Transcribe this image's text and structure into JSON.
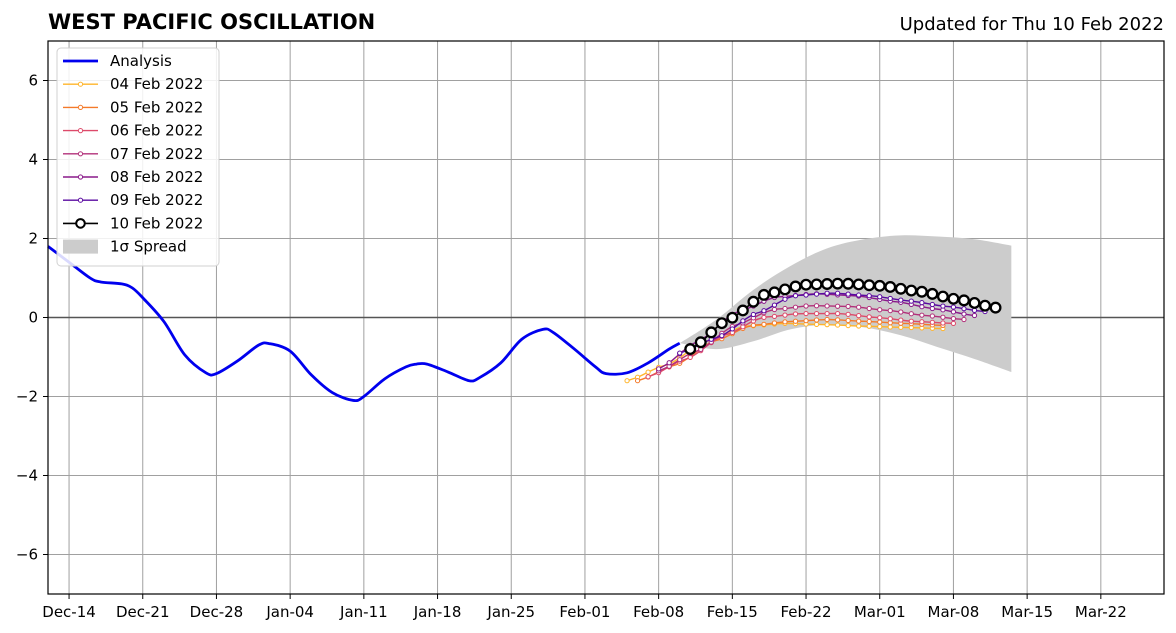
{
  "chart_data": {
    "type": "line",
    "title": "WEST PACIFIC OSCILLATION",
    "subtitle": "Updated for Thu 10 Feb 2022",
    "xlabel": "",
    "ylabel": "",
    "xlim": [
      "2021-12-12",
      "2022-03-28"
    ],
    "ylim": [
      -7,
      7
    ],
    "grid": true,
    "legend_position": "top-left",
    "x_ticks": [
      {
        "date": "2021-12-14",
        "label": "Dec-14"
      },
      {
        "date": "2021-12-21",
        "label": "Dec-21"
      },
      {
        "date": "2021-12-28",
        "label": "Dec-28"
      },
      {
        "date": "2022-01-04",
        "label": "Jan-04"
      },
      {
        "date": "2022-01-11",
        "label": "Jan-11"
      },
      {
        "date": "2022-01-18",
        "label": "Jan-18"
      },
      {
        "date": "2022-01-25",
        "label": "Jan-25"
      },
      {
        "date": "2022-02-01",
        "label": "Feb-01"
      },
      {
        "date": "2022-02-08",
        "label": "Feb-08"
      },
      {
        "date": "2022-02-15",
        "label": "Feb-15"
      },
      {
        "date": "2022-02-22",
        "label": "Feb-22"
      },
      {
        "date": "2022-03-01",
        "label": "Mar-01"
      },
      {
        "date": "2022-03-08",
        "label": "Mar-08"
      },
      {
        "date": "2022-03-15",
        "label": "Mar-15"
      },
      {
        "date": "2022-03-22",
        "label": "Mar-22"
      }
    ],
    "y_ticks": [
      {
        "value": 6,
        "label": "6"
      },
      {
        "value": 4,
        "label": "4"
      },
      {
        "value": 2,
        "label": "2"
      },
      {
        "value": 0,
        "label": "0"
      },
      {
        "value": -2,
        "label": "−2"
      },
      {
        "value": -4,
        "label": "−4"
      },
      {
        "value": -6,
        "label": "−6"
      }
    ],
    "analysis": {
      "name": "Analysis",
      "color": "#0000ee",
      "points": [
        [
          "2021-12-12",
          1.8
        ],
        [
          "2021-12-14",
          1.4
        ],
        [
          "2021-12-16",
          1.0
        ],
        [
          "2021-12-17",
          0.9
        ],
        [
          "2021-12-19",
          0.85
        ],
        [
          "2021-12-20",
          0.75
        ],
        [
          "2021-12-21",
          0.5
        ],
        [
          "2021-12-23",
          -0.1
        ],
        [
          "2021-12-25",
          -0.95
        ],
        [
          "2021-12-27",
          -1.4
        ],
        [
          "2021-12-28",
          -1.42
        ],
        [
          "2021-12-30",
          -1.1
        ],
        [
          "2022-01-01",
          -0.7
        ],
        [
          "2022-01-02",
          -0.66
        ],
        [
          "2022-01-04",
          -0.85
        ],
        [
          "2022-01-06",
          -1.45
        ],
        [
          "2022-01-08",
          -1.9
        ],
        [
          "2022-01-10",
          -2.1
        ],
        [
          "2022-01-11",
          -2.0
        ],
        [
          "2022-01-13",
          -1.55
        ],
        [
          "2022-01-15",
          -1.25
        ],
        [
          "2022-01-16",
          -1.18
        ],
        [
          "2022-01-17",
          -1.18
        ],
        [
          "2022-01-19",
          -1.38
        ],
        [
          "2022-01-21",
          -1.6
        ],
        [
          "2022-01-22",
          -1.52
        ],
        [
          "2022-01-24",
          -1.15
        ],
        [
          "2022-01-26",
          -0.55
        ],
        [
          "2022-01-28",
          -0.3
        ],
        [
          "2022-01-29",
          -0.38
        ],
        [
          "2022-01-31",
          -0.8
        ],
        [
          "2022-02-02",
          -1.25
        ],
        [
          "2022-02-03",
          -1.42
        ],
        [
          "2022-02-05",
          -1.4
        ],
        [
          "2022-02-07",
          -1.15
        ],
        [
          "2022-02-09",
          -0.8
        ],
        [
          "2022-02-10",
          -0.65
        ]
      ]
    },
    "spread": {
      "name": "1σ Spread",
      "color": "#cccccc",
      "start": "2022-02-10",
      "upper": [
        -0.65,
        -0.05,
        0.7,
        1.3,
        1.75,
        1.98,
        2.08,
        2.05,
        1.98,
        1.82
      ],
      "lower": [
        -0.65,
        -0.8,
        -0.6,
        -0.3,
        -0.18,
        -0.25,
        -0.45,
        -0.75,
        -1.05,
        -1.38
      ],
      "step_days": 3.5
    },
    "series": [
      {
        "name": "04 Feb 2022",
        "color": "#ffb42a",
        "start": "2022-02-05",
        "end": "2022-03-07",
        "anchors": [
          [
            0,
            -1.6
          ],
          [
            0.25,
            -1.2
          ],
          [
            0.5,
            -0.6
          ],
          [
            0.75,
            -0.22
          ],
          [
            1,
            -0.15
          ],
          [
            1.25,
            -0.18
          ],
          [
            1.5,
            -0.22
          ],
          [
            1.75,
            -0.25
          ],
          [
            2,
            -0.28
          ]
        ]
      },
      {
        "name": "05 Feb 2022",
        "color": "#f47a2a",
        "start": "2022-02-06",
        "end": "2022-03-07",
        "anchors": [
          [
            0,
            -1.6
          ],
          [
            0.25,
            -1.2
          ],
          [
            0.5,
            -0.6
          ],
          [
            0.75,
            -0.2
          ],
          [
            1,
            -0.1
          ],
          [
            1.25,
            -0.05
          ],
          [
            1.5,
            -0.1
          ],
          [
            1.75,
            -0.15
          ],
          [
            2,
            -0.2
          ]
        ]
      },
      {
        "name": "06 Feb 2022",
        "color": "#dd4a6a",
        "start": "2022-02-07",
        "end": "2022-03-08",
        "anchors": [
          [
            0,
            -1.5
          ],
          [
            0.25,
            -1.05
          ],
          [
            0.5,
            -0.45
          ],
          [
            0.75,
            0
          ],
          [
            1,
            0.1
          ],
          [
            1.25,
            0.1
          ],
          [
            1.5,
            0
          ],
          [
            1.75,
            -0.1
          ],
          [
            2,
            -0.15
          ]
        ]
      },
      {
        "name": "07 Feb 2022",
        "color": "#b2307a",
        "start": "2022-02-08",
        "end": "2022-03-09",
        "anchors": [
          [
            0,
            -1.35
          ],
          [
            0.25,
            -0.85
          ],
          [
            0.5,
            -0.2
          ],
          [
            0.75,
            0.2
          ],
          [
            1,
            0.3
          ],
          [
            1.25,
            0.28
          ],
          [
            1.5,
            0.18
          ],
          [
            1.75,
            0.05
          ],
          [
            2,
            -0.05
          ]
        ]
      },
      {
        "name": "08 Feb 2022",
        "color": "#8a1a8a",
        "start": "2022-02-08",
        "end": "2022-03-10",
        "anchors": [
          [
            0,
            -1.3
          ],
          [
            0.25,
            -0.6
          ],
          [
            0.5,
            0.15
          ],
          [
            0.75,
            0.52
          ],
          [
            1,
            0.6
          ],
          [
            1.25,
            0.55
          ],
          [
            1.5,
            0.4
          ],
          [
            1.75,
            0.22
          ],
          [
            2,
            0.05
          ]
        ]
      },
      {
        "name": "09 Feb 2022",
        "color": "#5a0aa0",
        "start": "2022-02-10",
        "end": "2022-03-11",
        "anchors": [
          [
            0,
            -0.9
          ],
          [
            0.25,
            -0.5
          ],
          [
            0.5,
            0.1
          ],
          [
            0.75,
            0.55
          ],
          [
            1,
            0.62
          ],
          [
            1.25,
            0.55
          ],
          [
            1.5,
            0.42
          ],
          [
            1.75,
            0.28
          ],
          [
            2,
            0.15
          ]
        ]
      },
      {
        "name": "10 Feb 2022",
        "color": "#000000",
        "start": "2022-02-11",
        "end": "2022-03-12",
        "big_markers": true,
        "anchors": [
          [
            0,
            -0.8
          ],
          [
            0.25,
            -0.05
          ],
          [
            0.5,
            0.6
          ],
          [
            0.75,
            0.83
          ],
          [
            1,
            0.86
          ],
          [
            1.25,
            0.8
          ],
          [
            1.5,
            0.66
          ],
          [
            1.75,
            0.46
          ],
          [
            2,
            0.25
          ]
        ]
      }
    ],
    "legend": [
      {
        "label": "Analysis",
        "kind": "thick-line",
        "color": "#0000ee"
      },
      {
        "label": "04 Feb 2022",
        "kind": "marker-line",
        "color": "#ffb42a"
      },
      {
        "label": "05 Feb 2022",
        "kind": "marker-line",
        "color": "#f47a2a"
      },
      {
        "label": "06 Feb 2022",
        "kind": "marker-line",
        "color": "#dd4a6a"
      },
      {
        "label": "07 Feb 2022",
        "kind": "marker-line",
        "color": "#b2307a"
      },
      {
        "label": "08 Feb 2022",
        "kind": "marker-line",
        "color": "#8a1a8a"
      },
      {
        "label": "09 Feb 2022",
        "kind": "marker-line",
        "color": "#5a0aa0"
      },
      {
        "label": "10 Feb 2022",
        "kind": "big-marker-line",
        "color": "#000000"
      },
      {
        "label": "1σ Spread",
        "kind": "patch",
        "color": "#cccccc"
      }
    ]
  }
}
